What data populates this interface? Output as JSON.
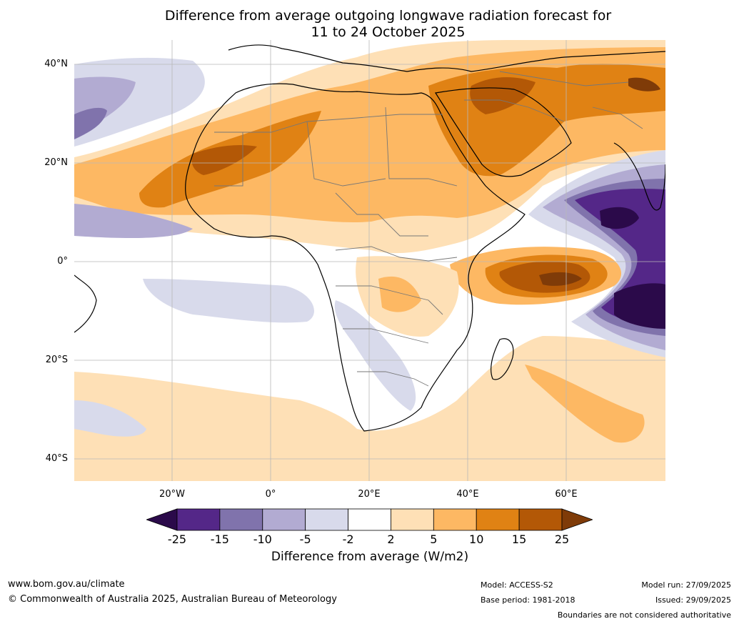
{
  "title": {
    "line1": "Difference from average outgoing longwave radiation forecast for",
    "line2": "11 to 24 October 2025"
  },
  "map": {
    "region": "Africa",
    "lat_labels": [
      "40°N",
      "20°N",
      "0°",
      "20°S",
      "40°S"
    ],
    "lon_labels": [
      "20°W",
      "0°",
      "20°E",
      "40°E",
      "60°E"
    ]
  },
  "colorbar": {
    "ticks": [
      "-25",
      "-15",
      "-10",
      "-5",
      "-2",
      "2",
      "5",
      "10",
      "15",
      "25"
    ],
    "label": "Difference from average (W/m2)",
    "colors": [
      "#2b0a4a",
      "#542788",
      "#8073ac",
      "#b2abd2",
      "#d8daeb",
      "#ffffff",
      "#fee0b6",
      "#fdb863",
      "#e08214",
      "#b35806",
      "#7f3b08"
    ]
  },
  "footer": {
    "url": "www.bom.gov.au/climate",
    "copyright": "© Commonwealth of Australia 2025, Australian Bureau of Meteorology",
    "model": "Model: ACCESS-S2",
    "base_period": "Base period: 1981-2018",
    "model_run": "Model run: 27/09/2025",
    "issued": "Issued: 29/09/2025",
    "boundaries": "Boundaries are not considered authoritative"
  }
}
